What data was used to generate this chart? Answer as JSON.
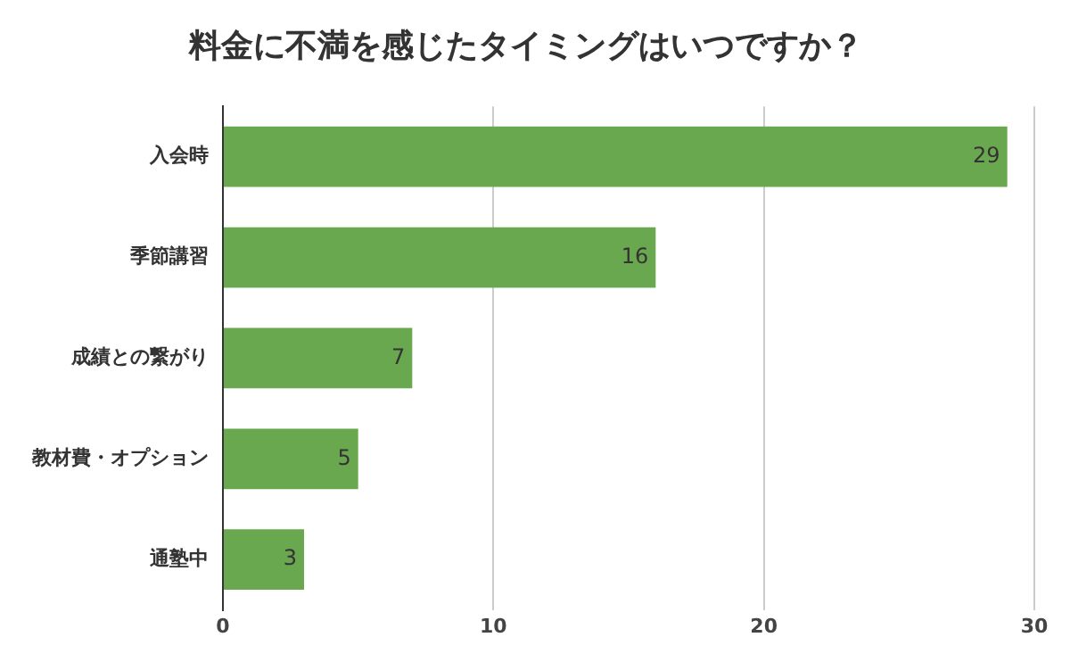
{
  "chart_data": {
    "type": "bar",
    "orientation": "horizontal",
    "title": "料金に不満を感じたタイミングはいつですか？",
    "categories": [
      "入会時",
      "季節講習",
      "成績との繋がり",
      "教材費・オプション",
      "通塾中"
    ],
    "values": [
      29,
      16,
      7,
      5,
      3
    ],
    "color": "#6aa84f",
    "xlim": [
      0,
      30
    ],
    "xticks": [
      0,
      10,
      20,
      30
    ],
    "grid": "x",
    "data_labels": true
  }
}
